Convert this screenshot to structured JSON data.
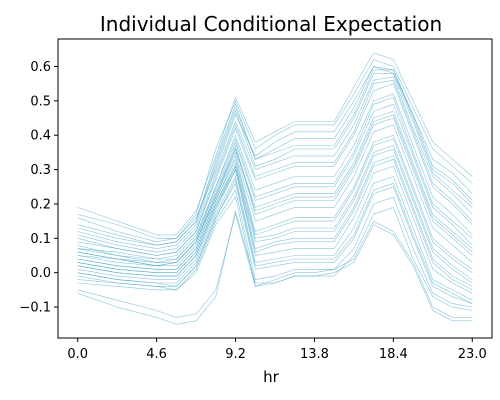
{
  "chart_data": {
    "type": "line",
    "title": "Individual Conditional Expectation",
    "xlabel": "hr",
    "ylabel": "",
    "x": [
      0.0,
      2.3,
      4.6,
      5.75,
      6.9,
      8.05,
      9.2,
      10.35,
      11.5,
      12.65,
      13.8,
      14.95,
      16.1,
      17.25,
      18.4,
      19.55,
      20.7,
      21.85,
      23.0
    ],
    "xticks": [
      "0.0",
      "4.6",
      "9.2",
      "13.8",
      "18.4",
      "23.0"
    ],
    "xtick_values": [
      0.0,
      4.6,
      9.2,
      13.8,
      18.4,
      23.0
    ],
    "yticks": [
      "−0.1",
      "0.0",
      "0.1",
      "0.2",
      "0.3",
      "0.4",
      "0.5",
      "0.6"
    ],
    "ytick_values": [
      -0.1,
      0.0,
      0.1,
      0.2,
      0.3,
      0.4,
      0.5,
      0.6
    ],
    "xlim": [
      -1.15,
      24.15
    ],
    "ylim": [
      -0.19,
      0.68
    ],
    "grid": false,
    "line_color": "#2596be",
    "series": [
      {
        "values": [
          0.19,
          0.15,
          0.11,
          0.11,
          0.18,
          0.34,
          0.51,
          0.38,
          0.41,
          0.44,
          0.44,
          0.44,
          0.54,
          0.64,
          0.62,
          0.5,
          0.38,
          0.33,
          0.28
        ]
      },
      {
        "values": [
          0.16,
          0.12,
          0.09,
          0.1,
          0.16,
          0.3,
          0.46,
          0.34,
          0.38,
          0.41,
          0.41,
          0.41,
          0.5,
          0.6,
          0.58,
          0.46,
          0.33,
          0.29,
          0.23
        ]
      },
      {
        "values": [
          0.13,
          0.1,
          0.08,
          0.09,
          0.15,
          0.32,
          0.48,
          0.33,
          0.35,
          0.37,
          0.37,
          0.37,
          0.46,
          0.59,
          0.59,
          0.45,
          0.3,
          0.26,
          0.2
        ]
      },
      {
        "values": [
          0.11,
          0.08,
          0.06,
          0.07,
          0.13,
          0.29,
          0.44,
          0.3,
          0.32,
          0.34,
          0.34,
          0.34,
          0.43,
          0.56,
          0.57,
          0.42,
          0.28,
          0.23,
          0.17
        ]
      },
      {
        "values": [
          0.09,
          0.07,
          0.05,
          0.06,
          0.12,
          0.27,
          0.42,
          0.27,
          0.29,
          0.31,
          0.31,
          0.31,
          0.4,
          0.53,
          0.55,
          0.4,
          0.25,
          0.2,
          0.14
        ]
      },
      {
        "values": [
          0.08,
          0.05,
          0.04,
          0.05,
          0.11,
          0.25,
          0.4,
          0.24,
          0.26,
          0.28,
          0.28,
          0.28,
          0.37,
          0.5,
          0.52,
          0.37,
          0.22,
          0.17,
          0.11
        ]
      },
      {
        "values": [
          0.07,
          0.05,
          0.03,
          0.04,
          0.1,
          0.24,
          0.38,
          0.21,
          0.23,
          0.25,
          0.25,
          0.25,
          0.34,
          0.47,
          0.49,
          0.34,
          0.19,
          0.14,
          0.08
        ]
      },
      {
        "values": [
          0.06,
          0.04,
          0.02,
          0.03,
          0.09,
          0.23,
          0.36,
          0.18,
          0.2,
          0.22,
          0.22,
          0.22,
          0.31,
          0.44,
          0.46,
          0.31,
          0.16,
          0.11,
          0.06
        ]
      },
      {
        "values": [
          0.05,
          0.03,
          0.02,
          0.02,
          0.08,
          0.22,
          0.35,
          0.15,
          0.17,
          0.19,
          0.19,
          0.19,
          0.28,
          0.41,
          0.43,
          0.28,
          0.13,
          0.08,
          0.03
        ]
      },
      {
        "values": [
          0.04,
          0.02,
          0.01,
          0.01,
          0.07,
          0.21,
          0.34,
          0.12,
          0.14,
          0.16,
          0.16,
          0.16,
          0.25,
          0.38,
          0.4,
          0.25,
          0.1,
          0.05,
          0.01
        ]
      },
      {
        "values": [
          0.03,
          0.01,
          0.0,
          0.0,
          0.06,
          0.2,
          0.32,
          0.1,
          0.11,
          0.13,
          0.13,
          0.13,
          0.22,
          0.35,
          0.37,
          0.22,
          0.07,
          0.02,
          -0.02
        ]
      },
      {
        "values": [
          0.02,
          0.0,
          -0.01,
          -0.01,
          0.05,
          0.19,
          0.31,
          0.07,
          0.09,
          0.1,
          0.1,
          0.1,
          0.19,
          0.32,
          0.34,
          0.19,
          0.04,
          -0.01,
          -0.04
        ]
      },
      {
        "values": [
          0.01,
          -0.01,
          -0.02,
          -0.02,
          0.04,
          0.18,
          0.3,
          0.05,
          0.06,
          0.07,
          0.07,
          0.07,
          0.16,
          0.29,
          0.31,
          0.16,
          0.01,
          -0.03,
          -0.06
        ]
      },
      {
        "values": [
          0.0,
          -0.02,
          -0.03,
          -0.03,
          0.03,
          0.17,
          0.28,
          0.03,
          0.04,
          0.05,
          0.05,
          0.05,
          0.13,
          0.26,
          0.28,
          0.13,
          -0.02,
          -0.05,
          -0.08
        ]
      },
      {
        "values": [
          -0.01,
          -0.03,
          -0.04,
          -0.04,
          0.02,
          0.16,
          0.26,
          0.01,
          0.02,
          0.03,
          0.03,
          0.03,
          0.1,
          0.23,
          0.25,
          0.1,
          -0.04,
          -0.07,
          -0.09
        ]
      },
      {
        "values": [
          -0.02,
          -0.03,
          -0.04,
          -0.05,
          0.01,
          0.15,
          0.24,
          -0.02,
          -0.01,
          0.01,
          0.01,
          0.01,
          0.07,
          0.2,
          0.22,
          0.07,
          -0.06,
          -0.09,
          -0.1
        ]
      },
      {
        "values": [
          -0.03,
          -0.04,
          -0.05,
          -0.05,
          0.0,
          0.14,
          0.22,
          -0.04,
          -0.03,
          -0.01,
          -0.01,
          -0.01,
          0.05,
          0.17,
          0.19,
          0.04,
          -0.07,
          -0.1,
          -0.11
        ]
      },
      {
        "values": [
          -0.05,
          -0.08,
          -0.11,
          -0.13,
          -0.12,
          -0.05,
          0.17,
          -0.04,
          -0.02,
          0.0,
          0.0,
          0.01,
          0.04,
          0.15,
          0.12,
          0.03,
          -0.1,
          -0.13,
          -0.13
        ]
      },
      {
        "values": [
          -0.06,
          -0.1,
          -0.13,
          -0.15,
          -0.14,
          -0.07,
          0.18,
          -0.03,
          -0.03,
          -0.01,
          -0.01,
          0.0,
          0.03,
          0.14,
          0.11,
          0.02,
          -0.11,
          -0.14,
          -0.14
        ]
      },
      {
        "values": [
          0.17,
          0.14,
          0.1,
          0.1,
          0.17,
          0.36,
          0.5,
          0.36,
          0.4,
          0.43,
          0.43,
          0.43,
          0.52,
          0.62,
          0.6,
          0.48,
          0.36,
          0.31,
          0.26
        ]
      },
      {
        "values": [
          0.12,
          0.09,
          0.07,
          0.08,
          0.14,
          0.31,
          0.47,
          0.31,
          0.33,
          0.36,
          0.36,
          0.36,
          0.45,
          0.58,
          0.58,
          0.44,
          0.29,
          0.24,
          0.19
        ]
      },
      {
        "values": [
          0.1,
          0.07,
          0.05,
          0.06,
          0.12,
          0.28,
          0.43,
          0.28,
          0.3,
          0.32,
          0.32,
          0.32,
          0.41,
          0.55,
          0.56,
          0.41,
          0.26,
          0.21,
          0.15
        ]
      },
      {
        "values": [
          0.07,
          0.06,
          0.04,
          0.04,
          0.1,
          0.25,
          0.39,
          0.22,
          0.24,
          0.26,
          0.26,
          0.26,
          0.35,
          0.49,
          0.51,
          0.35,
          0.2,
          0.15,
          0.1
        ]
      },
      {
        "values": [
          0.05,
          0.04,
          0.03,
          0.03,
          0.09,
          0.23,
          0.37,
          0.17,
          0.19,
          0.21,
          0.21,
          0.21,
          0.3,
          0.43,
          0.45,
          0.3,
          0.15,
          0.1,
          0.05
        ]
      },
      {
        "values": [
          0.04,
          0.02,
          0.01,
          0.01,
          0.07,
          0.21,
          0.33,
          0.11,
          0.13,
          0.15,
          0.15,
          0.15,
          0.24,
          0.37,
          0.39,
          0.24,
          0.09,
          0.04,
          0.0
        ]
      },
      {
        "values": [
          0.02,
          0.0,
          -0.01,
          -0.01,
          0.05,
          0.19,
          0.3,
          0.06,
          0.08,
          0.09,
          0.09,
          0.09,
          0.18,
          0.31,
          0.33,
          0.18,
          0.03,
          -0.02,
          -0.05
        ]
      },
      {
        "values": [
          0.0,
          -0.02,
          -0.03,
          -0.04,
          0.02,
          0.16,
          0.27,
          0.02,
          0.03,
          0.04,
          0.04,
          0.04,
          0.11,
          0.24,
          0.26,
          0.11,
          -0.03,
          -0.06,
          -0.09
        ]
      },
      {
        "values": [
          0.14,
          0.11,
          0.08,
          0.09,
          0.15,
          0.33,
          0.49,
          0.33,
          0.36,
          0.39,
          0.39,
          0.39,
          0.48,
          0.6,
          0.59,
          0.46,
          0.31,
          0.27,
          0.21
        ]
      },
      {
        "values": [
          0.06,
          0.04,
          0.02,
          0.03,
          0.09,
          0.22,
          0.36,
          0.19,
          0.21,
          0.23,
          0.23,
          0.23,
          0.32,
          0.45,
          0.47,
          0.32,
          0.17,
          0.12,
          0.07
        ]
      },
      {
        "values": [
          0.03,
          0.01,
          0.0,
          0.0,
          0.06,
          0.2,
          0.31,
          0.09,
          0.1,
          0.12,
          0.12,
          0.12,
          0.21,
          0.34,
          0.36,
          0.21,
          0.06,
          0.01,
          -0.03
        ]
      }
    ]
  }
}
